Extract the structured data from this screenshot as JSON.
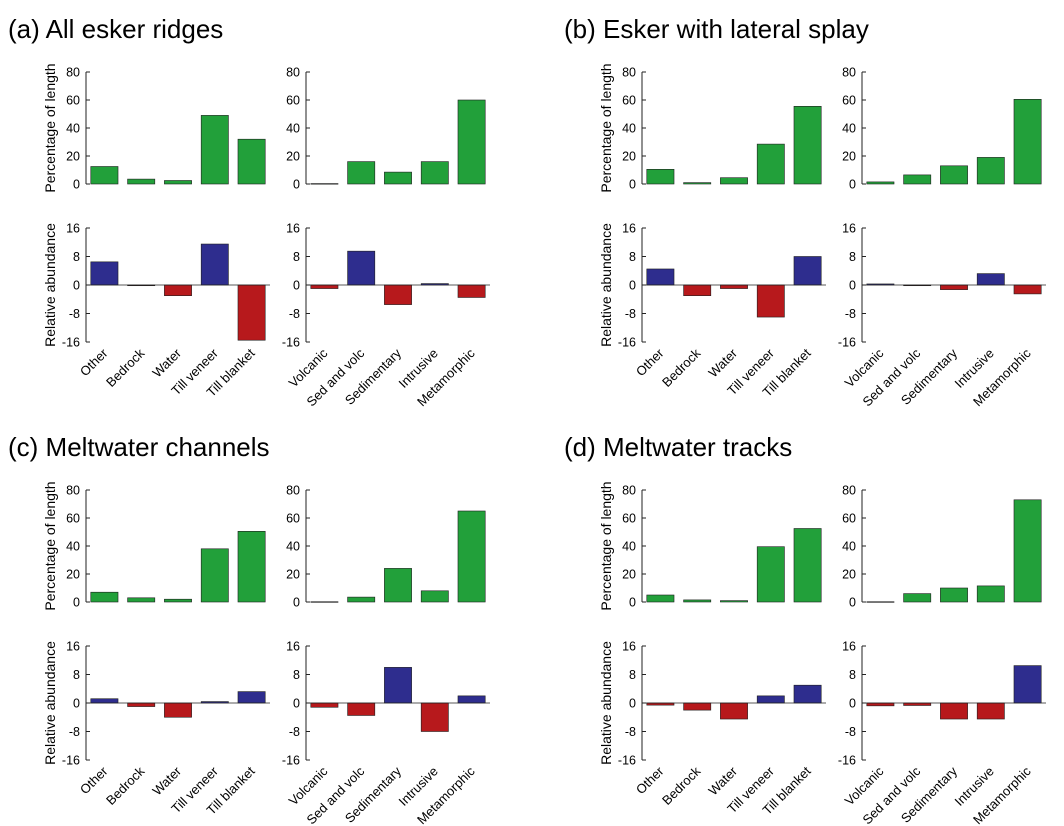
{
  "colors": {
    "green": "#22a03a",
    "blue": "#2e2d8e",
    "red": "#b7191c",
    "axis": "#222222"
  },
  "chart_data": [
    {
      "type": "bar",
      "title": "(a) All esker ridges",
      "landcover": {
        "categories": [
          "Other",
          "Bedrock",
          "Water",
          "Till veneer",
          "Till blanket"
        ],
        "percentage": [
          12.5,
          3.5,
          2.5,
          49,
          32
        ],
        "abundance": [
          6.5,
          -0.2,
          -3,
          11.5,
          -15.5
        ]
      },
      "geology": {
        "categories": [
          "Volcanic",
          "Sed and volc",
          "Sedimentary",
          "Intrusive",
          "Metamorphic"
        ],
        "percentage": [
          0.3,
          16,
          8.5,
          16,
          60
        ],
        "abundance": [
          -1,
          9.5,
          -5.5,
          0.4,
          -3.5
        ]
      }
    },
    {
      "type": "bar",
      "title": "(b) Esker with lateral splay",
      "landcover": {
        "categories": [
          "Other",
          "Bedrock",
          "Water",
          "Till veneer",
          "Till blanket"
        ],
        "percentage": [
          10.5,
          1,
          4.5,
          28.5,
          55.5
        ],
        "abundance": [
          4.5,
          -3,
          -1,
          -9,
          8
        ]
      },
      "geology": {
        "categories": [
          "Volcanic",
          "Sed and volc",
          "Sedimentary",
          "Intrusive",
          "Metamorphic"
        ],
        "percentage": [
          1.5,
          6.5,
          13,
          19,
          60.5
        ],
        "abundance": [
          0.3,
          -0.2,
          -1.3,
          3.2,
          -2.5
        ]
      }
    },
    {
      "type": "bar",
      "title": "(c) Meltwater channels",
      "landcover": {
        "categories": [
          "Other",
          "Bedrock",
          "Water",
          "Till veneer",
          "Till blanket"
        ],
        "percentage": [
          7,
          3,
          2,
          38,
          50.5
        ],
        "abundance": [
          1.2,
          -1,
          -4,
          0.4,
          3.2
        ]
      },
      "geology": {
        "categories": [
          "Volcanic",
          "Sed and volc",
          "Sedimentary",
          "Intrusive",
          "Metamorphic"
        ],
        "percentage": [
          0.2,
          3.5,
          24,
          8,
          65
        ],
        "abundance": [
          -1.2,
          -3.5,
          10,
          -8,
          2
        ]
      }
    },
    {
      "type": "bar",
      "title": "(d) Meltwater tracks",
      "landcover": {
        "categories": [
          "Other",
          "Bedrock",
          "Water",
          "Till veneer",
          "Till blanket"
        ],
        "percentage": [
          5,
          1.5,
          1,
          39.5,
          52.5
        ],
        "abundance": [
          -0.6,
          -2,
          -4.5,
          2,
          5
        ]
      },
      "geology": {
        "categories": [
          "Volcanic",
          "Sed and volc",
          "Sedimentary",
          "Intrusive",
          "Metamorphic"
        ],
        "percentage": [
          0.2,
          6,
          10,
          11.5,
          73
        ],
        "abundance": [
          -0.8,
          -0.7,
          -4.5,
          -4.5,
          10.5
        ]
      }
    }
  ],
  "axes": {
    "percentage": {
      "ylabel": "Percentage of length",
      "ylim": [
        0,
        80
      ],
      "ticks": [
        "80",
        "60",
        "40",
        "20",
        "0"
      ]
    },
    "abundance": {
      "ylabel": "Relative abundance",
      "ylim": [
        -16,
        16
      ],
      "ticks": [
        "16",
        "8",
        "0",
        "-8",
        "-16"
      ]
    }
  }
}
